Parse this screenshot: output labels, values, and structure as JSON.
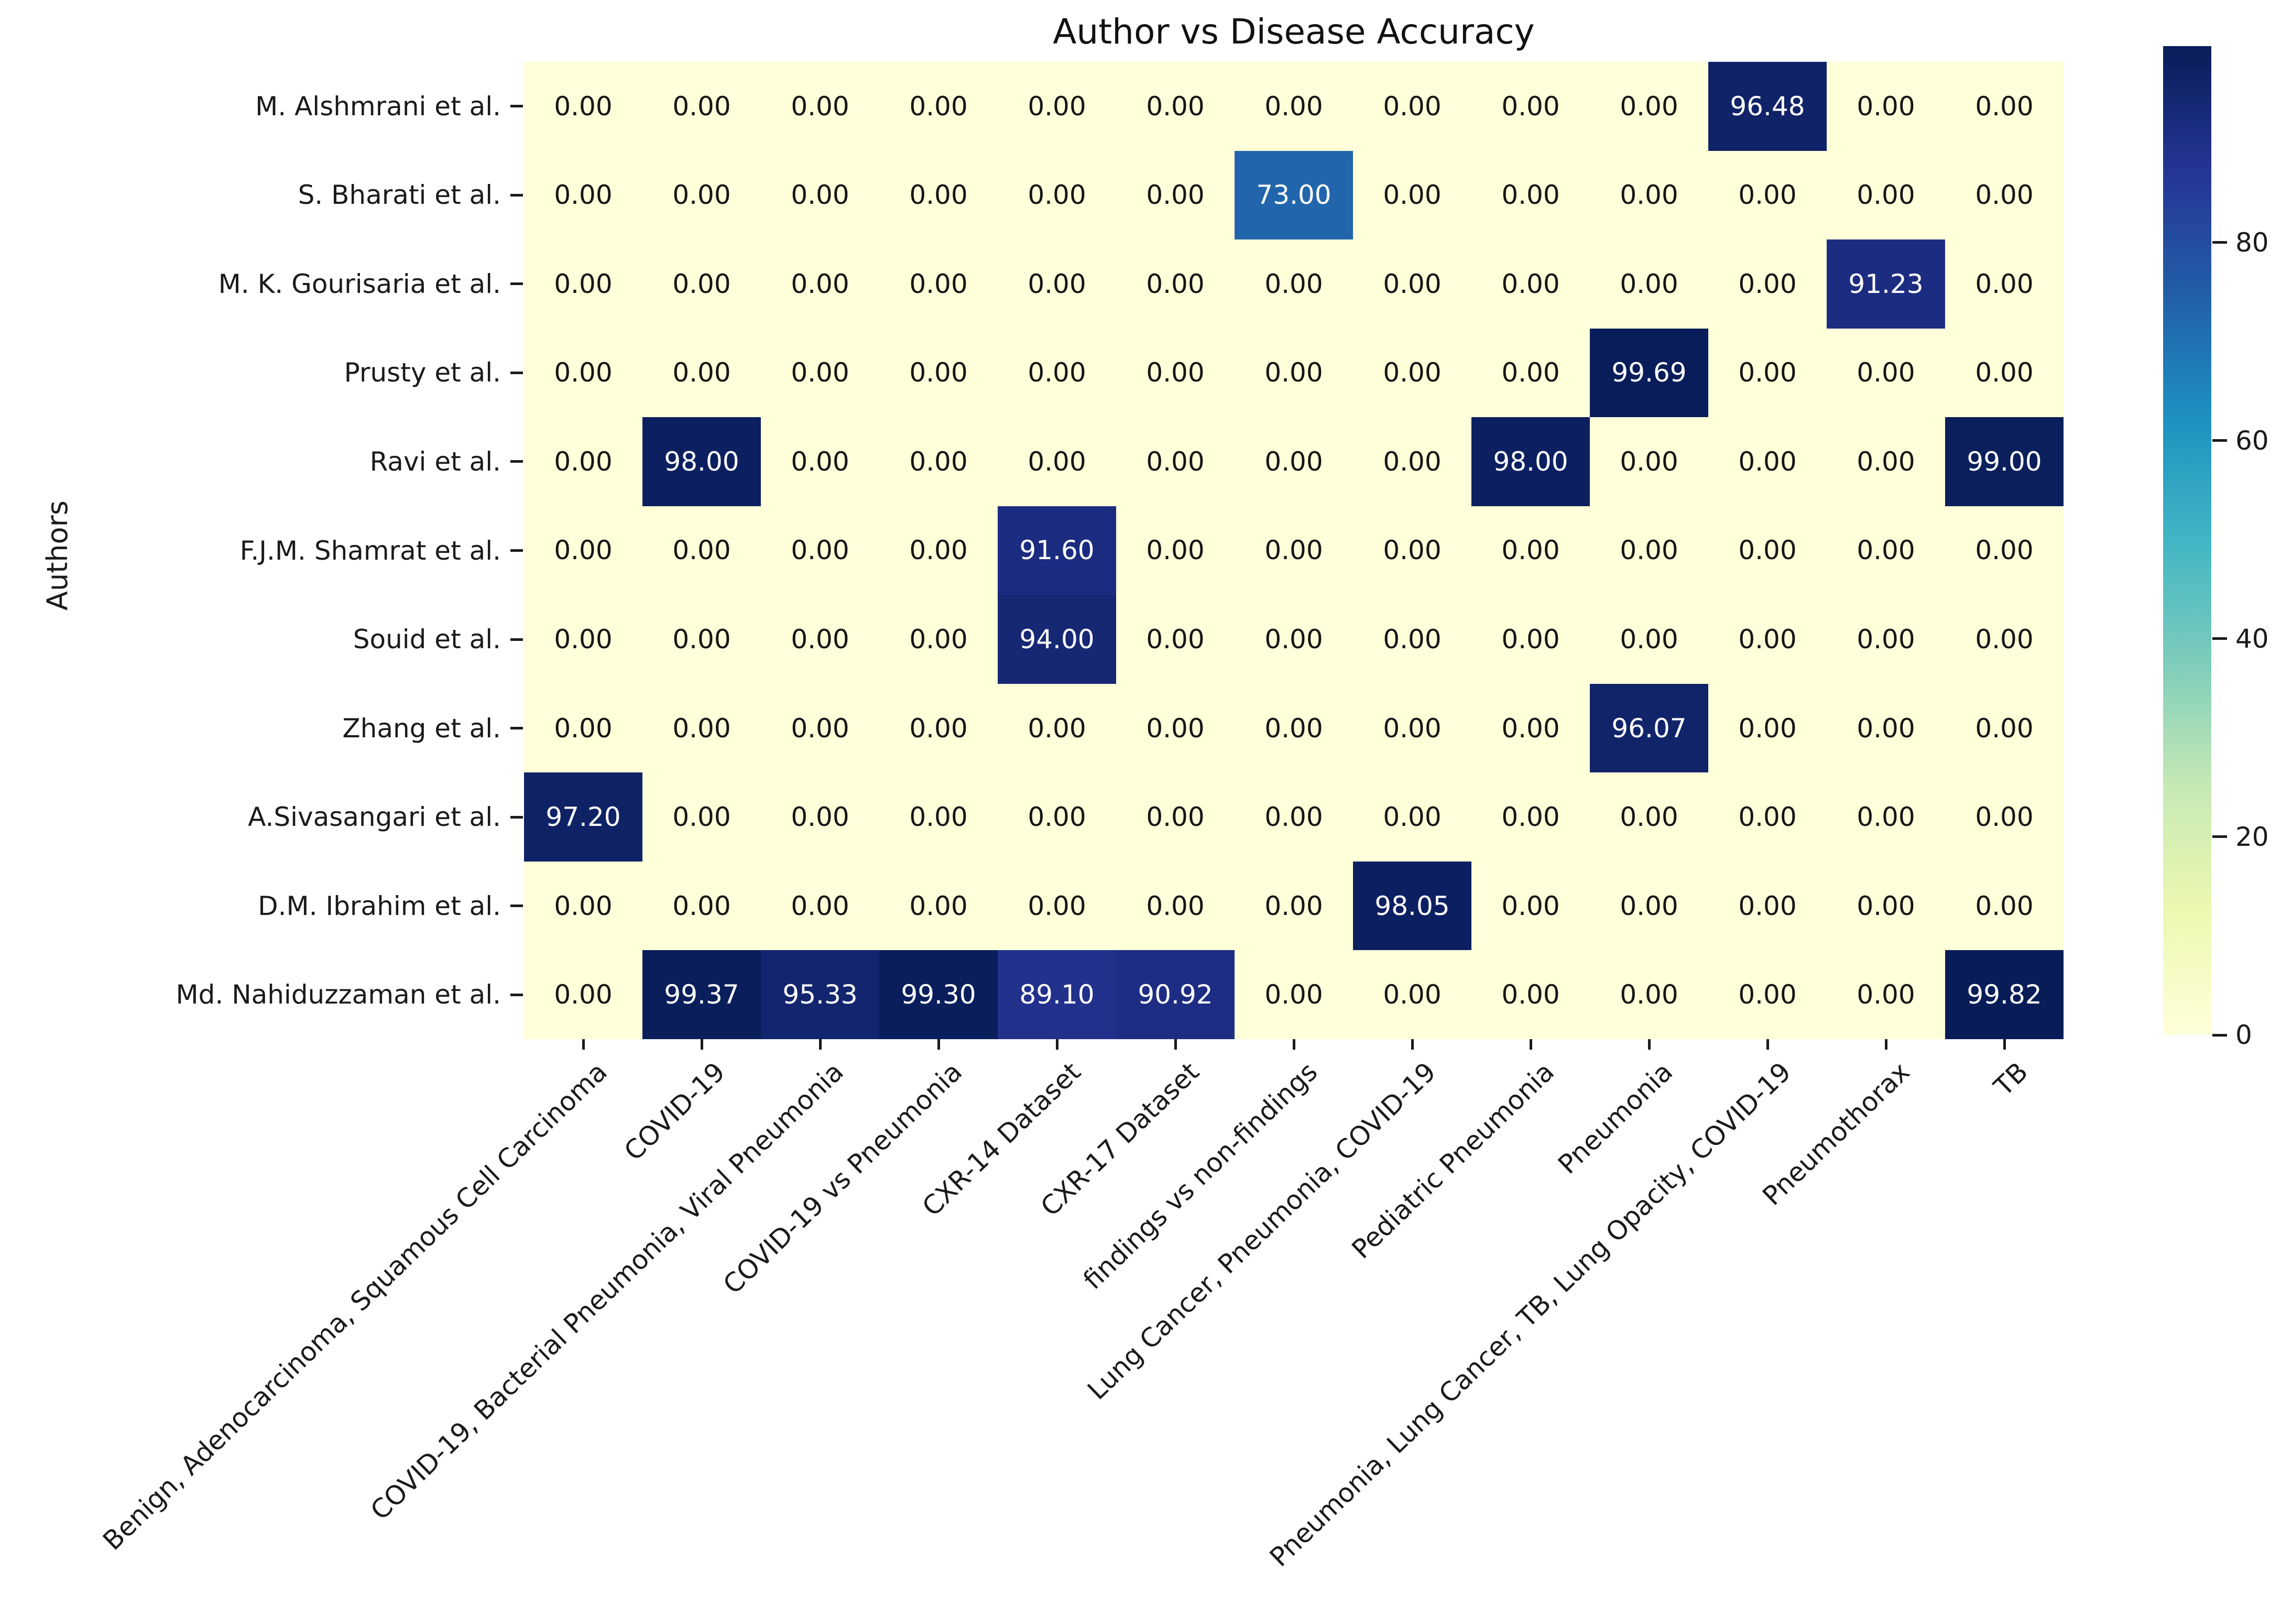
{
  "chart_data": {
    "type": "heatmap",
    "title": "Author vs Disease Accuracy",
    "xlabel": "",
    "ylabel": "Authors",
    "rows": [
      "M. Alshmrani et al.",
      "S. Bharati et al.",
      "M. K. Gourisaria et al.",
      "Prusty et al.",
      "Ravi et al.",
      "F.J.M. Shamrat et al.",
      "Souid et al.",
      "Zhang et al.",
      "A.Sivasangari et al.",
      "D.M. Ibrahim et al.",
      "Md. Nahiduzzaman et al."
    ],
    "columns": [
      "Benign, Adenocarcinoma, Squamous Cell Carcinoma",
      "COVID-19",
      "COVID-19, Bacterial Pneumonia, Viral Pneumonia",
      "COVID-19 vs Pneumonia",
      "CXR-14 Dataset",
      "CXR-17 Dataset",
      "findings vs non-findings",
      "Lung Cancer, Pneumonia, COVID-19",
      "Pediatric Pneumonia",
      "Pneumonia",
      "Pneumonia, Lung Cancer, TB, Lung Opacity, COVID-19",
      "Pneumothorax",
      "TB"
    ],
    "values": [
      [
        0.0,
        0.0,
        0.0,
        0.0,
        0.0,
        0.0,
        0.0,
        0.0,
        0.0,
        0.0,
        96.48,
        0.0,
        0.0
      ],
      [
        0.0,
        0.0,
        0.0,
        0.0,
        0.0,
        0.0,
        73.0,
        0.0,
        0.0,
        0.0,
        0.0,
        0.0,
        0.0
      ],
      [
        0.0,
        0.0,
        0.0,
        0.0,
        0.0,
        0.0,
        0.0,
        0.0,
        0.0,
        0.0,
        0.0,
        91.23,
        0.0
      ],
      [
        0.0,
        0.0,
        0.0,
        0.0,
        0.0,
        0.0,
        0.0,
        0.0,
        0.0,
        99.69,
        0.0,
        0.0,
        0.0
      ],
      [
        0.0,
        98.0,
        0.0,
        0.0,
        0.0,
        0.0,
        0.0,
        0.0,
        98.0,
        0.0,
        0.0,
        0.0,
        99.0
      ],
      [
        0.0,
        0.0,
        0.0,
        0.0,
        91.6,
        0.0,
        0.0,
        0.0,
        0.0,
        0.0,
        0.0,
        0.0,
        0.0
      ],
      [
        0.0,
        0.0,
        0.0,
        0.0,
        94.0,
        0.0,
        0.0,
        0.0,
        0.0,
        0.0,
        0.0,
        0.0,
        0.0
      ],
      [
        0.0,
        0.0,
        0.0,
        0.0,
        0.0,
        0.0,
        0.0,
        0.0,
        0.0,
        96.07,
        0.0,
        0.0,
        0.0
      ],
      [
        97.2,
        0.0,
        0.0,
        0.0,
        0.0,
        0.0,
        0.0,
        0.0,
        0.0,
        0.0,
        0.0,
        0.0,
        0.0
      ],
      [
        0.0,
        0.0,
        0.0,
        0.0,
        0.0,
        0.0,
        0.0,
        98.05,
        0.0,
        0.0,
        0.0,
        0.0,
        0.0
      ],
      [
        0.0,
        99.37,
        95.33,
        99.3,
        89.1,
        90.92,
        0.0,
        0.0,
        0.0,
        0.0,
        0.0,
        0.0,
        99.82
      ]
    ],
    "value_decimals": 2,
    "vmin": 0,
    "vmax": 99.82,
    "colormap": {
      "name": "YlGnBu",
      "anchors": [
        "#ffffd9",
        "#edf8b1",
        "#c7e9b4",
        "#7fcdbb",
        "#41b6c4",
        "#1d91c0",
        "#225ea8",
        "#253494",
        "#081d58"
      ]
    },
    "colorbar_ticks": [
      0,
      20,
      40,
      60,
      80
    ],
    "annotation_colors": {
      "on_dark": "#ffffff",
      "on_light": "#151515"
    },
    "legend_position": "right-colorbar",
    "grid": "off"
  }
}
